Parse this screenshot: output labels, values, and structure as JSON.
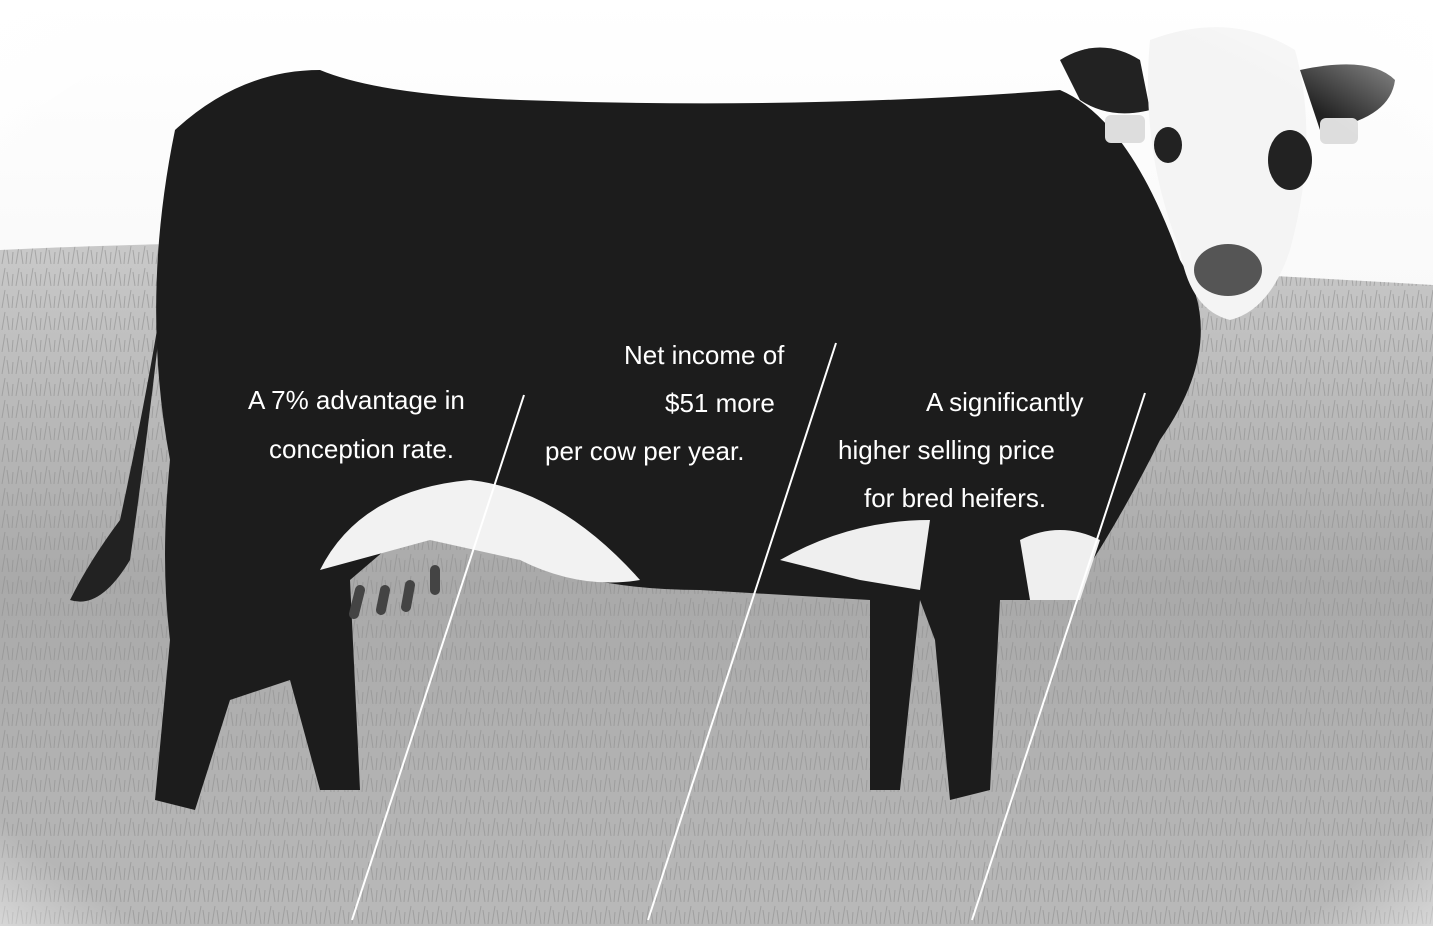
{
  "annotations": [
    {
      "lines": [
        "A 7% advantage in",
        "conception rate."
      ]
    },
    {
      "lines": [
        "Net income of",
        "$51 more",
        "per cow per year."
      ]
    },
    {
      "lines": [
        "A significantly",
        "higher selling price",
        "for bred heifers."
      ]
    }
  ]
}
